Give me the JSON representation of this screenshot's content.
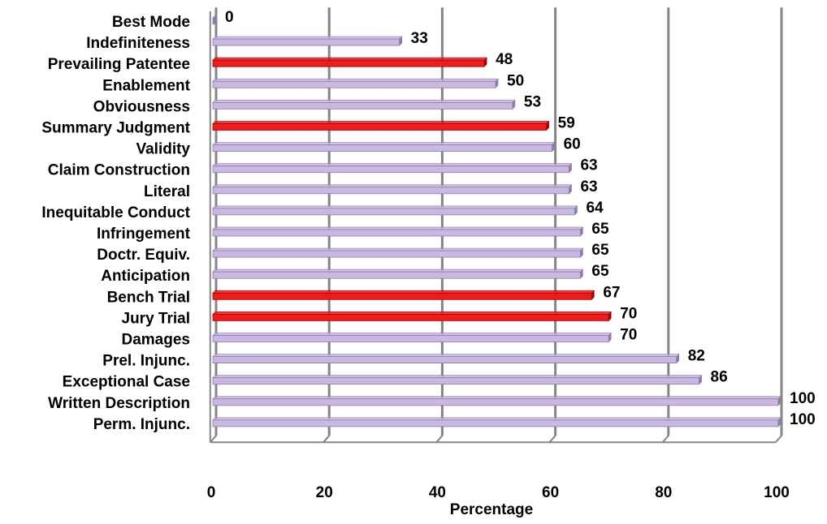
{
  "chart_data": {
    "type": "bar",
    "orientation": "horizontal",
    "title": "",
    "xlabel": "Percentage",
    "ylabel": "",
    "xlim": [
      0,
      100
    ],
    "x_ticks": [
      "0",
      "20",
      "40",
      "60",
      "80",
      "100"
    ],
    "grid": true,
    "categories": [
      "Best Mode",
      "Indefiniteness",
      "Prevailing Patentee",
      "Enablement",
      "Obviousness",
      "Summary Judgment",
      "Validity",
      "Claim Construction",
      "Literal",
      "Inequitable Conduct",
      "Infringement",
      "Doctr. Equiv.",
      "Anticipation",
      "Bench Trial",
      "Jury Trial",
      "Damages",
      "Prel. Injunc.",
      "Exceptional Case",
      "Written Description",
      "Perm. Injunc."
    ],
    "values": [
      0,
      33,
      48,
      50,
      53,
      59,
      60,
      63,
      63,
      64,
      65,
      65,
      65,
      67,
      70,
      70,
      82,
      86,
      100,
      100
    ],
    "value_labels": [
      "0",
      "33",
      "48",
      "50",
      "53",
      "59",
      "60",
      "63",
      "63",
      "64",
      "65",
      "65",
      "65",
      "67",
      "70",
      "70",
      "82",
      "86",
      "100",
      "100"
    ],
    "highlighted": [
      false,
      false,
      true,
      false,
      false,
      true,
      false,
      false,
      false,
      false,
      false,
      false,
      false,
      true,
      true,
      false,
      false,
      false,
      false,
      false
    ],
    "colors": {
      "bar": "#c9b8e0",
      "bar_edge": "#8f7bb0",
      "highlight": "#ee1c1c",
      "highlight_edge": "#a80000",
      "grid": "#858585"
    }
  }
}
